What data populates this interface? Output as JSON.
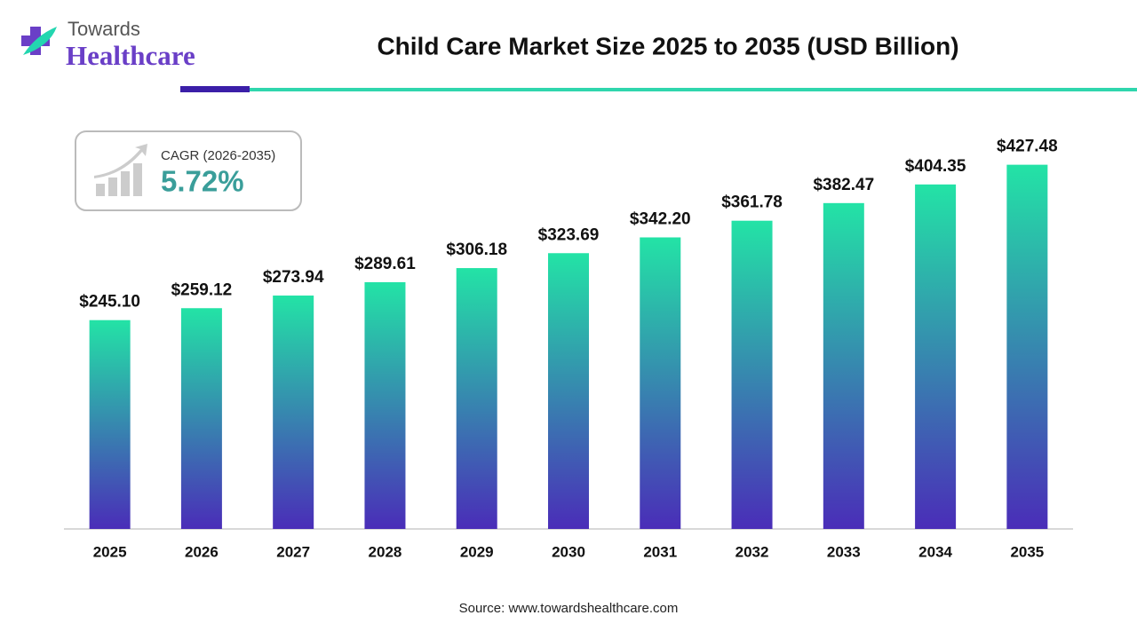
{
  "logo": {
    "line1": "Towards",
    "line2": "Healthcare"
  },
  "cagr": {
    "label": "CAGR (2026-2035)",
    "value": "5.72%"
  },
  "source": "Source: www.towardshealthcare.com",
  "chart_data": {
    "type": "bar",
    "title": "Child Care Market Size 2025 to 2035 (USD Billion)",
    "categories": [
      "2025",
      "2026",
      "2027",
      "2028",
      "2029",
      "2030",
      "2031",
      "2032",
      "2033",
      "2034",
      "2035"
    ],
    "values": [
      245.1,
      259.12,
      273.94,
      289.61,
      306.18,
      323.69,
      342.2,
      361.78,
      382.47,
      404.35,
      427.48
    ],
    "value_labels": [
      "$245.10",
      "$259.12",
      "$273.94",
      "$289.61",
      "$306.18",
      "$323.69",
      "$342.20",
      "$361.78",
      "$382.47",
      "$404.35",
      "$427.48"
    ],
    "colors": [
      "#23e3a6",
      "#4a2db8"
    ],
    "ylim": [
      0,
      450
    ]
  }
}
